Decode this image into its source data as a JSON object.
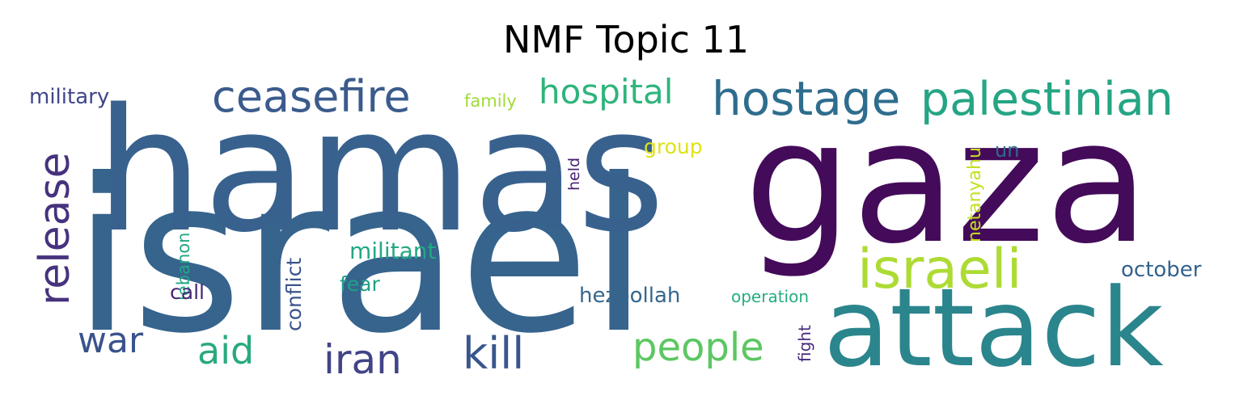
{
  "chart_data": {
    "type": "wordcloud",
    "title": "NMF Topic 11",
    "words": [
      {
        "text": "israel",
        "weight": 1.0,
        "color": "#36648d",
        "rotate": false
      },
      {
        "text": "hamas",
        "weight": 0.82,
        "color": "#38618e",
        "rotate": false
      },
      {
        "text": "gaza",
        "weight": 0.8,
        "color": "#440b5a",
        "rotate": false
      },
      {
        "text": "attack",
        "weight": 0.56,
        "color": "#2b858d",
        "rotate": false
      },
      {
        "text": "hostage",
        "weight": 0.33,
        "color": "#2e6d8e",
        "rotate": false
      },
      {
        "text": "palestinian",
        "weight": 0.32,
        "color": "#25a584",
        "rotate": false
      },
      {
        "text": "israeli",
        "weight": 0.34,
        "color": "#addb34",
        "rotate": false
      },
      {
        "text": "ceasefire",
        "weight": 0.3,
        "color": "#3b5b8c",
        "rotate": false
      },
      {
        "text": "release",
        "weight": 0.28,
        "color": "#46327d",
        "rotate": true
      },
      {
        "text": "hospital",
        "weight": 0.24,
        "color": "#2fb47b",
        "rotate": false
      },
      {
        "text": "kill",
        "weight": 0.24,
        "color": "#39568c",
        "rotate": false
      },
      {
        "text": "iran",
        "weight": 0.22,
        "color": "#414487",
        "rotate": false
      },
      {
        "text": "people",
        "weight": 0.23,
        "color": "#5cc762",
        "rotate": false
      },
      {
        "text": "war",
        "weight": 0.2,
        "color": "#3a538b",
        "rotate": false
      },
      {
        "text": "aid",
        "weight": 0.21,
        "color": "#2aa980",
        "rotate": false
      },
      {
        "text": "military",
        "weight": 0.12,
        "color": "#3f4788",
        "rotate": false
      },
      {
        "text": "hezbollah",
        "weight": 0.12,
        "color": "#35678d",
        "rotate": false
      },
      {
        "text": "october",
        "weight": 0.11,
        "color": "#33638d",
        "rotate": false
      },
      {
        "text": "militant",
        "weight": 0.12,
        "color": "#22a884",
        "rotate": false
      },
      {
        "text": "conflict",
        "weight": 0.11,
        "color": "#3a548b",
        "rotate": true
      },
      {
        "text": "group",
        "weight": 0.1,
        "color": "#dde318",
        "rotate": false
      },
      {
        "text": "netanyahu",
        "weight": 0.09,
        "color": "#c5e021",
        "rotate": true
      },
      {
        "text": "lebanon",
        "weight": 0.09,
        "color": "#22a785",
        "rotate": true
      },
      {
        "text": "call",
        "weight": 0.1,
        "color": "#482374",
        "rotate": false
      },
      {
        "text": "fear",
        "weight": 0.1,
        "color": "#1fa187",
        "rotate": false
      },
      {
        "text": "un",
        "weight": 0.1,
        "color": "#2f6c8e",
        "rotate": false
      },
      {
        "text": "family",
        "weight": 0.08,
        "color": "#a2da37",
        "rotate": false
      },
      {
        "text": "operation",
        "weight": 0.08,
        "color": "#26ad81",
        "rotate": false
      },
      {
        "text": "held",
        "weight": 0.08,
        "color": "#482173",
        "rotate": true
      },
      {
        "text": "fight",
        "weight": 0.08,
        "color": "#472c7a",
        "rotate": true
      }
    ]
  }
}
